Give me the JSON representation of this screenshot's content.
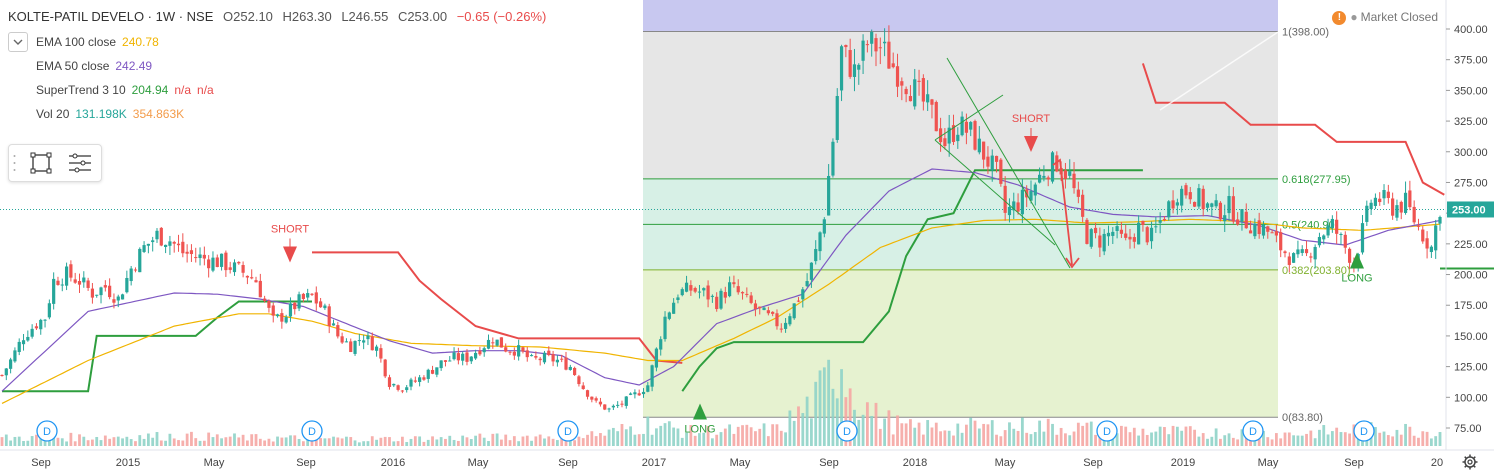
{
  "header": {
    "symbol": "KOLTE-PATIL DEVELO · 1W · NSE",
    "open": "O252.10",
    "high": "H263.30",
    "low": "L246.55",
    "close": "C253.00",
    "change": "−0.65 (−0.26%)",
    "market_status": "Market Closed",
    "market_dot": "●"
  },
  "indicators": {
    "ema100": {
      "label": "EMA 100 close",
      "value": "240.78",
      "color": "#f0b400"
    },
    "ema50": {
      "label": "EMA 50 close",
      "value": "242.49",
      "color": "#7e57c2"
    },
    "supertrend": {
      "label": "SuperTrend 3 10",
      "value": "204.94",
      "na1": "n/a",
      "na2": "n/a",
      "color": "#2e9e3e",
      "na_color": "#e84b4b"
    },
    "vol": {
      "label": "Vol 20",
      "value1": "131.198K",
      "value2": "354.863K",
      "color1": "#26a69a",
      "color2": "#f39c4b"
    }
  },
  "colors": {
    "up": "#26a69a",
    "down": "#ef5350",
    "ema100": "#f0b400",
    "ema50": "#7e57c2",
    "st_up": "#2e9e3e",
    "st_down": "#e84b4b",
    "fib_top": "#c8c8f0",
    "fib_grey": "#e6e6e6",
    "fib_teal": "#d7f0e6",
    "fib_green": "#e6f2d0",
    "last_price_bg": "#26a69a"
  },
  "chart_data": {
    "type": "candlestick",
    "y_axis": {
      "ticks": [
        "400.00",
        "375.00",
        "350.00",
        "325.00",
        "300.00",
        "275.00",
        "250.00",
        "225.00",
        "200.00",
        "175.00",
        "150.00",
        "125.00",
        "100.00",
        "75.00"
      ],
      "range": [
        64,
        412
      ]
    },
    "x_axis": {
      "ticks": [
        "Sep",
        "2015",
        "May",
        "Sep",
        "2016",
        "May",
        "Sep",
        "2017",
        "May",
        "Sep",
        "2018",
        "May",
        "Sep",
        "2019",
        "May",
        "Sep",
        "20"
      ]
    },
    "last_price": "253.00",
    "fibonacci": [
      {
        "level": "1",
        "label": "1(398.00)",
        "price": 398.0
      },
      {
        "level": "0.618",
        "label": "0.618(277.95)",
        "price": 277.95
      },
      {
        "level": "0.5",
        "label": "0.5(240.90)",
        "price": 240.9
      },
      {
        "level": "0.382",
        "label": "0.382(203.80)",
        "price": 203.8
      },
      {
        "level": "0",
        "label": "0(83.80)",
        "price": 83.8
      }
    ],
    "signals": [
      {
        "text": "SHORT",
        "type": "short",
        "date": "2015-08"
      },
      {
        "text": "LONG",
        "type": "long",
        "date": "2017-03"
      },
      {
        "text": "SHORT",
        "type": "short",
        "date": "2018-05"
      },
      {
        "text": "LONG",
        "type": "long",
        "date": "2019-08"
      }
    ],
    "dividend_markers": [
      "D",
      "D",
      "D",
      "D",
      "D",
      "D",
      "D"
    ],
    "price_anchors": [
      [
        0,
        118
      ],
      [
        2,
        130
      ],
      [
        5,
        150
      ],
      [
        8,
        160
      ],
      [
        10,
        165
      ],
      [
        12,
        195
      ],
      [
        15,
        200
      ],
      [
        18,
        195
      ],
      [
        21,
        185
      ],
      [
        24,
        190
      ],
      [
        27,
        180
      ],
      [
        30,
        205
      ],
      [
        33,
        222
      ],
      [
        36,
        232
      ],
      [
        39,
        228
      ],
      [
        42,
        218
      ],
      [
        45,
        215
      ],
      [
        48,
        212
      ],
      [
        51,
        210
      ],
      [
        54,
        205
      ],
      [
        57,
        200
      ],
      [
        59,
        195
      ],
      [
        61,
        178
      ],
      [
        63,
        162
      ],
      [
        66,
        168
      ],
      [
        69,
        178
      ],
      [
        72,
        182
      ],
      [
        75,
        170
      ],
      [
        78,
        150
      ],
      [
        81,
        142
      ],
      [
        84,
        150
      ],
      [
        87,
        140
      ],
      [
        90,
        112
      ],
      [
        93,
        108
      ],
      [
        96,
        113
      ],
      [
        99,
        120
      ],
      [
        102,
        128
      ],
      [
        105,
        132
      ],
      [
        108,
        132
      ],
      [
        111,
        140
      ],
      [
        114,
        148
      ],
      [
        117,
        140
      ],
      [
        120,
        138
      ],
      [
        123,
        130
      ],
      [
        126,
        132
      ],
      [
        129,
        130
      ],
      [
        132,
        125
      ],
      [
        135,
        108
      ],
      [
        138,
        95
      ],
      [
        141,
        90
      ],
      [
        144,
        95
      ],
      [
        147,
        102
      ],
      [
        150,
        110
      ],
      [
        152,
        138
      ],
      [
        154,
        165
      ],
      [
        157,
        185
      ],
      [
        160,
        188
      ],
      [
        163,
        185
      ],
      [
        166,
        178
      ],
      [
        169,
        190
      ],
      [
        172,
        182
      ],
      [
        175,
        172
      ],
      [
        178,
        165
      ],
      [
        181,
        158
      ],
      [
        184,
        175
      ],
      [
        187,
        195
      ],
      [
        189,
        218
      ],
      [
        191,
        250
      ],
      [
        193,
        310
      ],
      [
        195,
        382
      ],
      [
        198,
        365
      ],
      [
        201,
        388
      ],
      [
        204,
        385
      ],
      [
        207,
        370
      ],
      [
        210,
        358
      ],
      [
        213,
        345
      ],
      [
        216,
        330
      ],
      [
        219,
        308
      ],
      [
        222,
        322
      ],
      [
        225,
        315
      ],
      [
        228,
        298
      ],
      [
        231,
        282
      ],
      [
        233,
        250
      ],
      [
        236,
        258
      ],
      [
        239,
        268
      ],
      [
        242,
        285
      ],
      [
        245,
        292
      ],
      [
        248,
        280
      ],
      [
        250,
        255
      ],
      [
        252,
        232
      ],
      [
        255,
        228
      ],
      [
        258,
        235
      ],
      [
        261,
        225
      ],
      [
        264,
        238
      ],
      [
        267,
        230
      ],
      [
        270,
        250
      ],
      [
        273,
        268
      ],
      [
        276,
        268
      ],
      [
        279,
        258
      ],
      [
        282,
        252
      ],
      [
        285,
        255
      ],
      [
        288,
        245
      ],
      [
        291,
        240
      ],
      [
        294,
        235
      ],
      [
        297,
        222
      ],
      [
        300,
        212
      ],
      [
        303,
        215
      ],
      [
        306,
        232
      ],
      [
        309,
        240
      ],
      [
        311,
        228
      ],
      [
        314,
        210
      ],
      [
        316,
        235
      ],
      [
        318,
        260
      ],
      [
        320,
        262
      ],
      [
        323,
        255
      ],
      [
        326,
        258
      ],
      [
        329,
        238
      ],
      [
        332,
        222
      ],
      [
        334,
        255
      ]
    ],
    "ema50_anchors": [
      [
        0,
        105
      ],
      [
        20,
        170
      ],
      [
        40,
        185
      ],
      [
        50,
        184
      ],
      [
        60,
        180
      ],
      [
        70,
        174
      ],
      [
        80,
        160
      ],
      [
        90,
        146
      ],
      [
        100,
        136
      ],
      [
        110,
        138
      ],
      [
        120,
        138
      ],
      [
        130,
        134
      ],
      [
        140,
        116
      ],
      [
        148,
        110
      ],
      [
        156,
        125
      ],
      [
        166,
        160
      ],
      [
        176,
        173
      ],
      [
        186,
        184
      ],
      [
        196,
        232
      ],
      [
        206,
        268
      ],
      [
        216,
        286
      ],
      [
        226,
        283
      ],
      [
        236,
        273
      ],
      [
        248,
        255
      ],
      [
        258,
        249
      ],
      [
        268,
        247
      ],
      [
        280,
        248
      ],
      [
        292,
        240
      ],
      [
        302,
        228
      ],
      [
        312,
        224
      ],
      [
        322,
        236
      ],
      [
        334,
        244
      ]
    ],
    "ema100_anchors": [
      [
        0,
        95
      ],
      [
        20,
        130
      ],
      [
        40,
        158
      ],
      [
        55,
        168
      ],
      [
        62,
        168
      ],
      [
        72,
        162
      ],
      [
        82,
        152
      ],
      [
        95,
        144
      ],
      [
        110,
        142
      ],
      [
        125,
        141
      ],
      [
        140,
        136
      ],
      [
        150,
        130
      ],
      [
        158,
        130
      ],
      [
        170,
        148
      ],
      [
        180,
        165
      ],
      [
        192,
        192
      ],
      [
        204,
        222
      ],
      [
        216,
        238
      ],
      [
        228,
        244
      ],
      [
        240,
        245
      ],
      [
        252,
        242
      ],
      [
        264,
        243
      ],
      [
        276,
        245
      ],
      [
        290,
        243
      ],
      [
        302,
        238
      ],
      [
        316,
        236
      ],
      [
        334,
        241
      ]
    ],
    "volume_anchors": [
      [
        0,
        8
      ],
      [
        40,
        10
      ],
      [
        60,
        8
      ],
      [
        90,
        7
      ],
      [
        120,
        9
      ],
      [
        140,
        12
      ],
      [
        150,
        22
      ],
      [
        160,
        14
      ],
      [
        180,
        16
      ],
      [
        189,
        45
      ],
      [
        193,
        75
      ],
      [
        195,
        85
      ],
      [
        198,
        50
      ],
      [
        203,
        30
      ],
      [
        210,
        18
      ],
      [
        240,
        20
      ],
      [
        270,
        14
      ],
      [
        300,
        12
      ],
      [
        320,
        18
      ],
      [
        334,
        14
      ]
    ]
  }
}
